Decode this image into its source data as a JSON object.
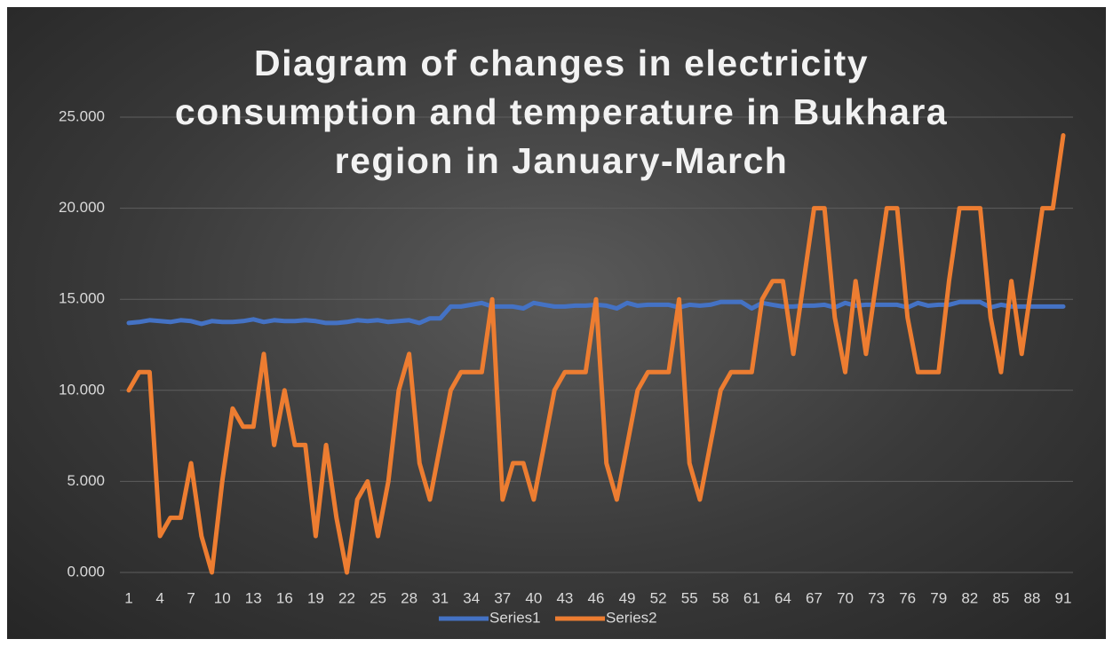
{
  "chart_data": {
    "type": "line",
    "title": "Diagram of changes in electricity consumption and temperature in Bukhara region in January-March",
    "categories": [
      1,
      null,
      null,
      4,
      null,
      null,
      7,
      null,
      null,
      10,
      null,
      null,
      13,
      null,
      null,
      16,
      null,
      null,
      19,
      null,
      null,
      22,
      null,
      null,
      25,
      null,
      null,
      28,
      null,
      null,
      31,
      null,
      null,
      34,
      null,
      null,
      37,
      null,
      null,
      40,
      null,
      null,
      43,
      null,
      null,
      46,
      null,
      null,
      49,
      null,
      null,
      52,
      null,
      null,
      55,
      null,
      null,
      58,
      null,
      null,
      61,
      null,
      null,
      64,
      null,
      null,
      67,
      null,
      null,
      70,
      null,
      null,
      73,
      null,
      null,
      76,
      null,
      null,
      79,
      null,
      null,
      82,
      null,
      null,
      85,
      null,
      null,
      88,
      null,
      null,
      91
    ],
    "series": [
      {
        "name": "Series1",
        "color": "#4472c4",
        "values": [
          13.7,
          13.75,
          13.85,
          13.8,
          13.75,
          13.85,
          13.8,
          13.65,
          13.8,
          13.75,
          13.75,
          13.8,
          13.9,
          13.75,
          13.85,
          13.8,
          13.8,
          13.85,
          13.8,
          13.7,
          13.7,
          13.75,
          13.85,
          13.8,
          13.85,
          13.75,
          13.8,
          13.85,
          13.7,
          13.95,
          13.95,
          14.6,
          14.6,
          14.7,
          14.8,
          14.6,
          14.6,
          14.6,
          14.5,
          14.8,
          14.7,
          14.6,
          14.6,
          14.65,
          14.65,
          14.7,
          14.65,
          14.5,
          14.8,
          14.65,
          14.7,
          14.7,
          14.7,
          14.55,
          14.7,
          14.65,
          14.7,
          14.85,
          14.85,
          14.85,
          14.5,
          14.8,
          14.7,
          14.6,
          14.6,
          14.65,
          14.65,
          14.7,
          14.55,
          14.8,
          14.65,
          14.7,
          14.7,
          14.7,
          14.7,
          14.55,
          14.8,
          14.65,
          14.7,
          14.7,
          14.85,
          14.85,
          14.85,
          14.55,
          14.7,
          14.6,
          14.6,
          14.6,
          14.6,
          14.6,
          14.6
        ]
      },
      {
        "name": "Series2",
        "color": "#ed7d31",
        "values": [
          10,
          11,
          11,
          2,
          3,
          3,
          6,
          2,
          0,
          5,
          9,
          8,
          8,
          12,
          7,
          10,
          7,
          7,
          2,
          7,
          3,
          0,
          4,
          5,
          2,
          5,
          10,
          12,
          6,
          4,
          7,
          10,
          11,
          11,
          11,
          15,
          4,
          6,
          6,
          4,
          7,
          10,
          11,
          11,
          11,
          15,
          6,
          4,
          7,
          10,
          11,
          11,
          11,
          15,
          6,
          4,
          7,
          10,
          11,
          11,
          11,
          15,
          16,
          16,
          12,
          16,
          20,
          20,
          14,
          11,
          16,
          12,
          16,
          20,
          20,
          14,
          11,
          11,
          11,
          16,
          20,
          20,
          20,
          14,
          11,
          16,
          12,
          16,
          20,
          20,
          24
        ]
      }
    ],
    "ylim": [
      0,
      25
    ],
    "yticks": [
      {
        "value": 0,
        "label": "0.000"
      },
      {
        "value": 5,
        "label": "5.000"
      },
      {
        "value": 10,
        "label": "10.000"
      },
      {
        "value": 15,
        "label": "15.000"
      },
      {
        "value": 20,
        "label": "20.000"
      },
      {
        "value": 25,
        "label": "25.000"
      }
    ],
    "grid": true,
    "legend": "bottom"
  }
}
